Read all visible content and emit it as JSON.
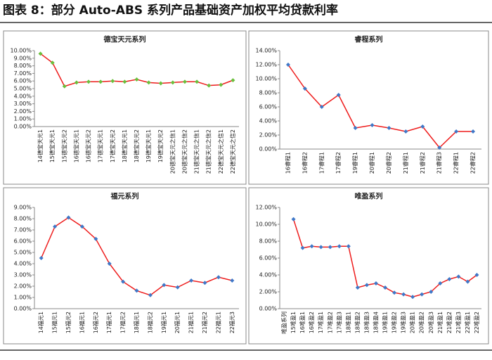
{
  "title": "图表 8：部分 Auto-ABS 系列产品基础资产加权平均贷款利率",
  "chart_data": [
    {
      "type": "line",
      "title": "德宝天元系列",
      "categories": [
        "14德宝天元1",
        "15德宝天元1",
        "15德宝天元2",
        "16德宝天元1",
        "16德宝天元2",
        "17德宝天元1",
        "17德宝天元2",
        "18德宝天元1",
        "18德宝天元2",
        "19德宝天元1",
        "19德宝天元2",
        "20德宝天元之信1",
        "20德宝天元之信2",
        "21德宝天元之信1",
        "21德宝天元之信2",
        "22德宝天元之信1",
        "22德宝天元之信2"
      ],
      "series": [
        {
          "color": "#ee1c1c",
          "marker_color": "#6abf3c",
          "values": [
            9.6,
            8.4,
            5.3,
            5.8,
            5.9,
            5.9,
            6.0,
            5.9,
            6.2,
            5.8,
            5.7,
            5.8,
            5.9,
            5.9,
            5.4,
            5.5,
            6.1
          ]
        }
      ],
      "ylim": [
        0,
        10
      ],
      "yticks": [
        {
          "value": 0,
          "label": "0.00%"
        },
        {
          "value": 1,
          "label": "1.00%"
        },
        {
          "value": 2,
          "label": "2.00%"
        },
        {
          "value": 3,
          "label": "3.00%"
        },
        {
          "value": 4,
          "label": "4.00%"
        },
        {
          "value": 5,
          "label": "5.00%"
        },
        {
          "value": 6,
          "label": "6.00%"
        },
        {
          "value": 7,
          "label": "7.00%"
        },
        {
          "value": 8,
          "label": "8.00%"
        },
        {
          "value": 9,
          "label": "9.00%"
        },
        {
          "value": 10,
          "label": "10.00%"
        }
      ],
      "grid": false
    },
    {
      "type": "line",
      "title": "睿程系列",
      "categories": [
        "16睿程1",
        "16睿程2",
        "17睿程1",
        "17睿程2",
        "19睿程1",
        "20睿程1",
        "20睿程2",
        "21睿程1",
        "21睿程2",
        "21睿程3",
        "22睿程1",
        "22睿程2"
      ],
      "series": [
        {
          "color": "#ee1c1c",
          "marker_color": "#3f78c8",
          "values": [
            12.0,
            8.6,
            6.0,
            7.7,
            3.0,
            3.4,
            3.0,
            2.5,
            3.2,
            0.2,
            2.5,
            2.5
          ]
        }
      ],
      "ylim": [
        0,
        14
      ],
      "yticks": [
        {
          "value": 0,
          "label": "0.00%"
        },
        {
          "value": 2,
          "label": "2.00%"
        },
        {
          "value": 4,
          "label": "4.00%"
        },
        {
          "value": 6,
          "label": "6.00%"
        },
        {
          "value": 8,
          "label": "8.00%"
        },
        {
          "value": 10,
          "label": "10.00%"
        },
        {
          "value": 12,
          "label": "12.00%"
        },
        {
          "value": 14,
          "label": "14.00%"
        }
      ],
      "grid": false
    },
    {
      "type": "line",
      "title": "福元系列",
      "categories": [
        "14福元1",
        "15福元1",
        "15福元2",
        "16福元1",
        "16福元2",
        "17福元1",
        "17福元2",
        "18福元1",
        "18福元2",
        "19福元1",
        "20福元1",
        "21福元1",
        "21福元2",
        "22福元1",
        "22福元3"
      ],
      "series": [
        {
          "color": "#ee1c1c",
          "marker_color": "#3f78c8",
          "values": [
            4.5,
            7.3,
            8.1,
            7.3,
            6.2,
            4.0,
            2.4,
            1.6,
            1.2,
            2.1,
            1.9,
            2.5,
            2.3,
            2.8,
            2.5
          ]
        }
      ],
      "ylim": [
        0,
        9
      ],
      "yticks": [
        {
          "value": 0,
          "label": "0.00%"
        },
        {
          "value": 1,
          "label": "1.00%"
        },
        {
          "value": 2,
          "label": "2.00%"
        },
        {
          "value": 3,
          "label": "3.00%"
        },
        {
          "value": 4,
          "label": "4.00%"
        },
        {
          "value": 5,
          "label": "5.00%"
        },
        {
          "value": 6,
          "label": "6.00%"
        },
        {
          "value": 7,
          "label": "7.00%"
        },
        {
          "value": 8,
          "label": "8.00%"
        },
        {
          "value": 9,
          "label": "9.00%"
        }
      ],
      "grid": false
    },
    {
      "type": "line",
      "title": "唯盈系列",
      "categories": [
        "唯盈系列",
        "15唯盈1",
        "16唯盈1",
        "16唯盈2",
        "17唯盈1",
        "17唯盈2",
        "17唯盈3",
        "18唯盈1",
        "18唯盈2",
        "18唯盈3",
        "18唯盈4",
        "19唯盈1",
        "19唯盈2",
        "19唯盈3",
        "20唯盈1",
        "20唯盈2",
        "20唯盈3",
        "21唯盈1",
        "21唯盈2",
        "21唯盈3",
        "22唯盈1",
        "22唯盈2"
      ],
      "series": [
        {
          "color": "#ee1c1c",
          "marker_color": "#3f78c8",
          "values": [
            null,
            10.6,
            7.2,
            7.4,
            7.3,
            7.3,
            7.4,
            7.4,
            2.5,
            2.8,
            3.0,
            2.5,
            1.9,
            1.7,
            1.4,
            1.7,
            2.0,
            3.0,
            3.5,
            3.8,
            3.2,
            4.0
          ]
        }
      ],
      "ylim": [
        0,
        12
      ],
      "yticks": [
        {
          "value": 0,
          "label": "0.00%"
        },
        {
          "value": 2,
          "label": "2.00%"
        },
        {
          "value": 4,
          "label": "4.00%"
        },
        {
          "value": 6,
          "label": "6.00%"
        },
        {
          "value": 8,
          "label": "8.00%"
        },
        {
          "value": 10,
          "label": "10.00%"
        },
        {
          "value": 12,
          "label": "12.00%"
        }
      ],
      "grid": false
    }
  ]
}
